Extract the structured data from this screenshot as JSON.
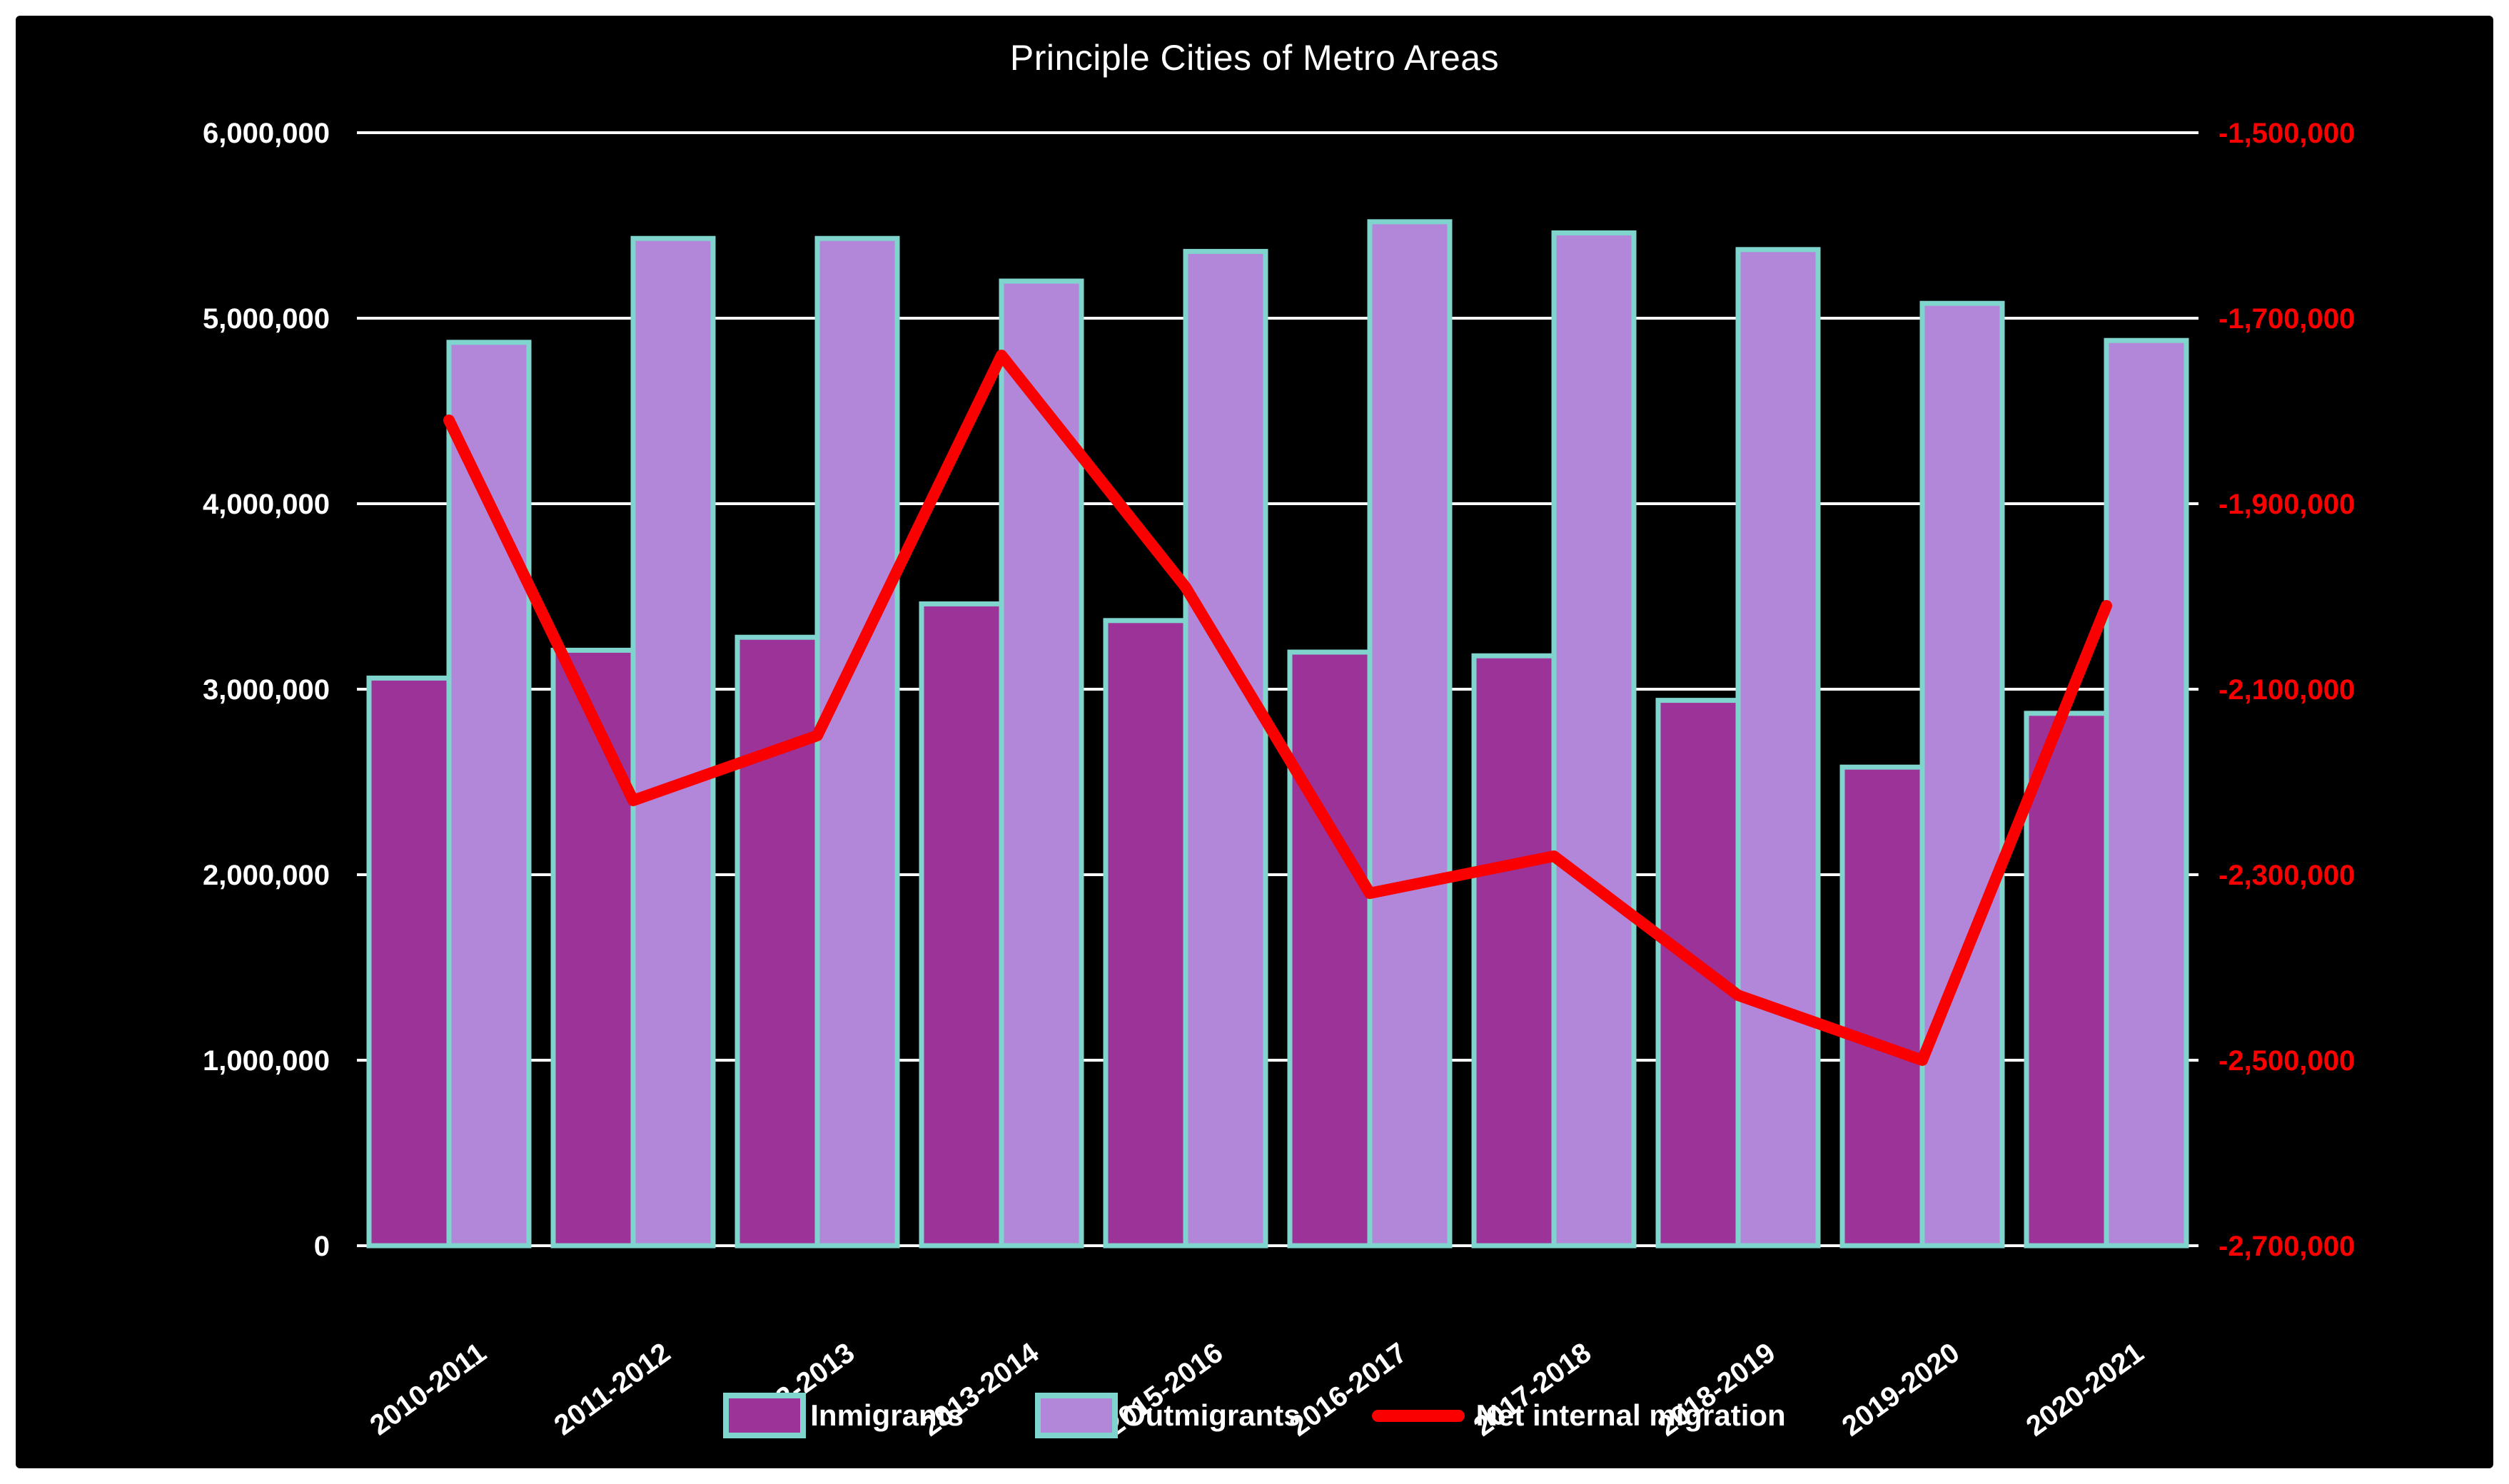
{
  "title": "Principle Cities of Metro Areas",
  "colors": {
    "page_margin": "#ffffff",
    "canvas_background": "#000000",
    "gridline": "#ffffff",
    "inmigrants_bar": "#9b3398",
    "outmigrants_bar": "#b287d9",
    "bar_border": "#7fd4cd",
    "net_migration_line": "#fa0000",
    "left_axis_text": "#ffffff",
    "right_axis_text": "#fb0000",
    "x_axis_text": "#ffffff"
  },
  "chart_data": {
    "type": "bar",
    "subtype": "grouped-bars-with-line-overlay",
    "title": "Principle Cities of Metro Areas",
    "grid": true,
    "legend_position": "bottom",
    "categories": [
      "2010-2011",
      "2011-2012",
      "2012-2013",
      "2013-2014",
      "2015-2016",
      "2016-2017",
      "2017-2018",
      "2018-2019",
      "2019-2020",
      "2020-2021"
    ],
    "series": [
      {
        "name": "Inmigrants",
        "type": "bar",
        "axis": "left",
        "color": "#9b3398",
        "border_color": "#7fd4cd",
        "values": [
          3060000,
          3210000,
          3280000,
          3460000,
          3370000,
          3200000,
          3180000,
          2940000,
          2580000,
          2870000
        ]
      },
      {
        "name": "Outmigrants",
        "type": "bar",
        "axis": "left",
        "color": "#b287d9",
        "border_color": "#7fd4cd",
        "values": [
          4870000,
          5430000,
          5430000,
          5200000,
          5360000,
          5520000,
          5460000,
          5370000,
          5080000,
          4880000
        ]
      },
      {
        "name": "Net internal migration",
        "type": "line",
        "axis": "right",
        "color": "#fa0000",
        "values": [
          -1810000,
          -2220000,
          -2150000,
          -1740000,
          -1990000,
          -2320000,
          -2280000,
          -2430000,
          -2500000,
          -2010000
        ]
      }
    ],
    "left_axis": {
      "min": 0,
      "max": 6000000,
      "step": 1000000,
      "tick_labels": [
        "6,000,000",
        "5,000,000",
        "4,000,000",
        "3,000,000",
        "2,000,000",
        "1,000,000",
        "0"
      ]
    },
    "right_axis": {
      "min": -2700000,
      "max": -1500000,
      "step": 200000,
      "tick_labels": [
        "-1,500,000",
        "-1,700,000",
        "-1,900,000",
        "-2,100,000",
        "-2,300,000",
        "-2,500,000",
        "-2,700,000"
      ]
    }
  }
}
